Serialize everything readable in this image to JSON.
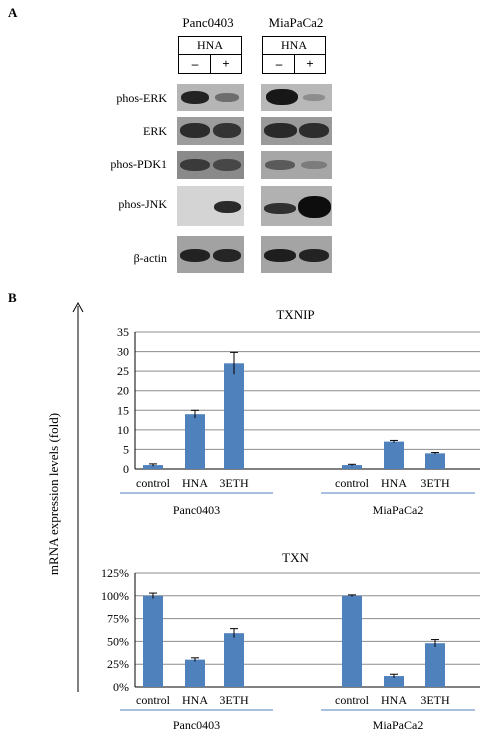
{
  "panel_a": {
    "letter": "A",
    "cell_lines": [
      "Panc0403",
      "MiaPaCa2"
    ],
    "treatment_label": "HNA",
    "signs": [
      "–",
      "+"
    ],
    "rows": [
      "phos-ERK",
      "ERK",
      "phos-PDK1",
      "phos-JNK",
      "β-actin"
    ]
  },
  "panel_b": {
    "letter": "B",
    "y_axis_label": "mRNA expression levels (fold)"
  },
  "chart_data": [
    {
      "type": "bar",
      "title": "TXNIP",
      "groups": [
        "Panc0403",
        "MiaPaCa2"
      ],
      "categories": [
        "control",
        "HNA",
        "3ETH",
        "control",
        "HNA",
        "3ETH"
      ],
      "values": [
        1,
        14,
        27,
        1,
        7,
        4
      ],
      "errors": [
        0.3,
        1.0,
        2.8,
        0.2,
        0.3,
        0.2
      ],
      "yticks": [
        "0",
        "5",
        "10",
        "15",
        "20",
        "25",
        "30",
        "35"
      ],
      "ylim": [
        0,
        35
      ],
      "color": "#4f81bd",
      "grid": true
    },
    {
      "type": "bar",
      "title": "TXN",
      "groups": [
        "Panc0403",
        "MiaPaCa2"
      ],
      "categories": [
        "control",
        "HNA",
        "3ETH",
        "control",
        "HNA",
        "3ETH"
      ],
      "values": [
        1.0,
        0.3,
        0.59,
        1.0,
        0.12,
        0.48
      ],
      "errors": [
        0.03,
        0.02,
        0.05,
        0.01,
        0.02,
        0.04
      ],
      "yticks": [
        "0%",
        "25%",
        "50%",
        "75%",
        "100%",
        "125%"
      ],
      "ylim": [
        0,
        1.25
      ],
      "color": "#4f81bd",
      "grid": true
    }
  ]
}
